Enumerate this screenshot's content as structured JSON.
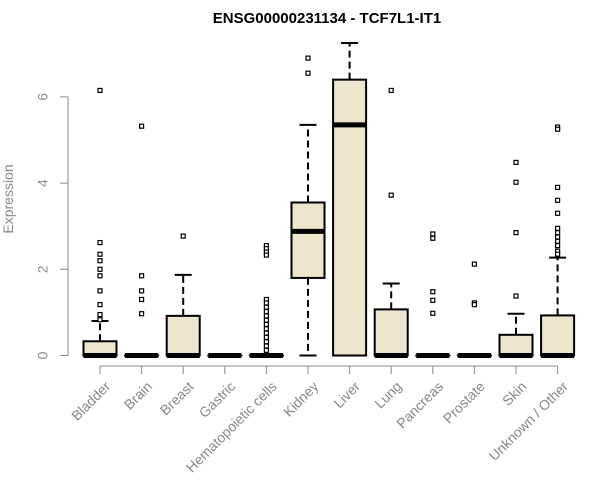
{
  "chart_data": {
    "type": "box",
    "title": "ENSG00000231134 - TCF7L1-IT1",
    "ylabel": "Expression",
    "xlabel": "",
    "ylim": [
      0,
      7.3
    ],
    "yticks": [
      0,
      2,
      4,
      6
    ],
    "box_color": "#ede5cc",
    "grid": false,
    "categories": [
      "Bladder",
      "Brain",
      "Breast",
      "Gastric",
      "Hematopoietic cells",
      "Kidney",
      "Liver",
      "Lung",
      "Pancreas",
      "Prostate",
      "Skin",
      "Unknown / Other"
    ],
    "boxes": [
      {
        "name": "Bladder",
        "whisker_low": 0,
        "q1": 0,
        "median": 0,
        "q3": 0.33,
        "whisker_high": 0.8,
        "outliers": [
          6.15,
          2.62,
          2.35,
          2.2,
          2.0,
          1.85,
          1.5,
          1.18,
          0.95,
          0.83
        ]
      },
      {
        "name": "Brain",
        "whisker_low": 0,
        "q1": 0,
        "median": 0,
        "q3": 0,
        "whisker_high": 0,
        "outliers": [
          5.32,
          1.85,
          1.5,
          1.3,
          0.97
        ]
      },
      {
        "name": "Breast",
        "whisker_low": 0,
        "q1": 0,
        "median": 0,
        "q3": 0.92,
        "whisker_high": 1.87,
        "outliers": [
          2.77
        ]
      },
      {
        "name": "Gastric",
        "whisker_low": 0,
        "q1": 0,
        "median": 0,
        "q3": 0,
        "whisker_high": 0,
        "outliers": []
      },
      {
        "name": "Hematopoietic cells",
        "whisker_low": 0,
        "q1": 0,
        "median": 0,
        "q3": 0,
        "whisker_high": 0,
        "outliers": [
          2.55,
          2.48,
          2.4,
          2.33,
          1.3,
          1.22,
          1.12,
          1.02,
          0.92,
          0.82,
          0.72,
          0.62,
          0.52,
          0.42,
          0.32,
          0.22,
          0.12
        ]
      },
      {
        "name": "Kidney",
        "whisker_low": 0,
        "q1": 1.8,
        "median": 2.88,
        "q3": 3.55,
        "whisker_high": 5.35,
        "outliers": [
          6.9,
          6.55
        ]
      },
      {
        "name": "Liver",
        "whisker_low": 0,
        "q1": 0,
        "median": 5.35,
        "q3": 6.4,
        "whisker_high": 7.25,
        "outliers": []
      },
      {
        "name": "Lung",
        "whisker_low": 0,
        "q1": 0,
        "median": 0,
        "q3": 1.07,
        "whisker_high": 1.67,
        "outliers": [
          6.15,
          3.72
        ]
      },
      {
        "name": "Pancreas",
        "whisker_low": 0,
        "q1": 0,
        "median": 0,
        "q3": 0,
        "whisker_high": 0,
        "outliers": [
          2.82,
          2.72,
          1.48,
          1.28,
          0.98
        ]
      },
      {
        "name": "Prostate",
        "whisker_low": 0,
        "q1": 0,
        "median": 0,
        "q3": 0,
        "whisker_high": 0,
        "outliers": [
          2.12,
          1.22,
          1.18
        ]
      },
      {
        "name": "Skin",
        "whisker_low": 0,
        "q1": 0,
        "median": 0,
        "q3": 0.48,
        "whisker_high": 0.97,
        "outliers": [
          4.48,
          4.02,
          2.85,
          1.38
        ]
      },
      {
        "name": "Unknown / Other",
        "whisker_low": 0,
        "q1": 0,
        "median": 0,
        "q3": 0.93,
        "whisker_high": 2.27,
        "outliers": [
          5.3,
          5.25,
          3.9,
          3.6,
          3.3,
          2.95,
          2.85,
          2.75,
          2.65,
          2.55,
          2.42,
          2.35
        ]
      }
    ]
  }
}
